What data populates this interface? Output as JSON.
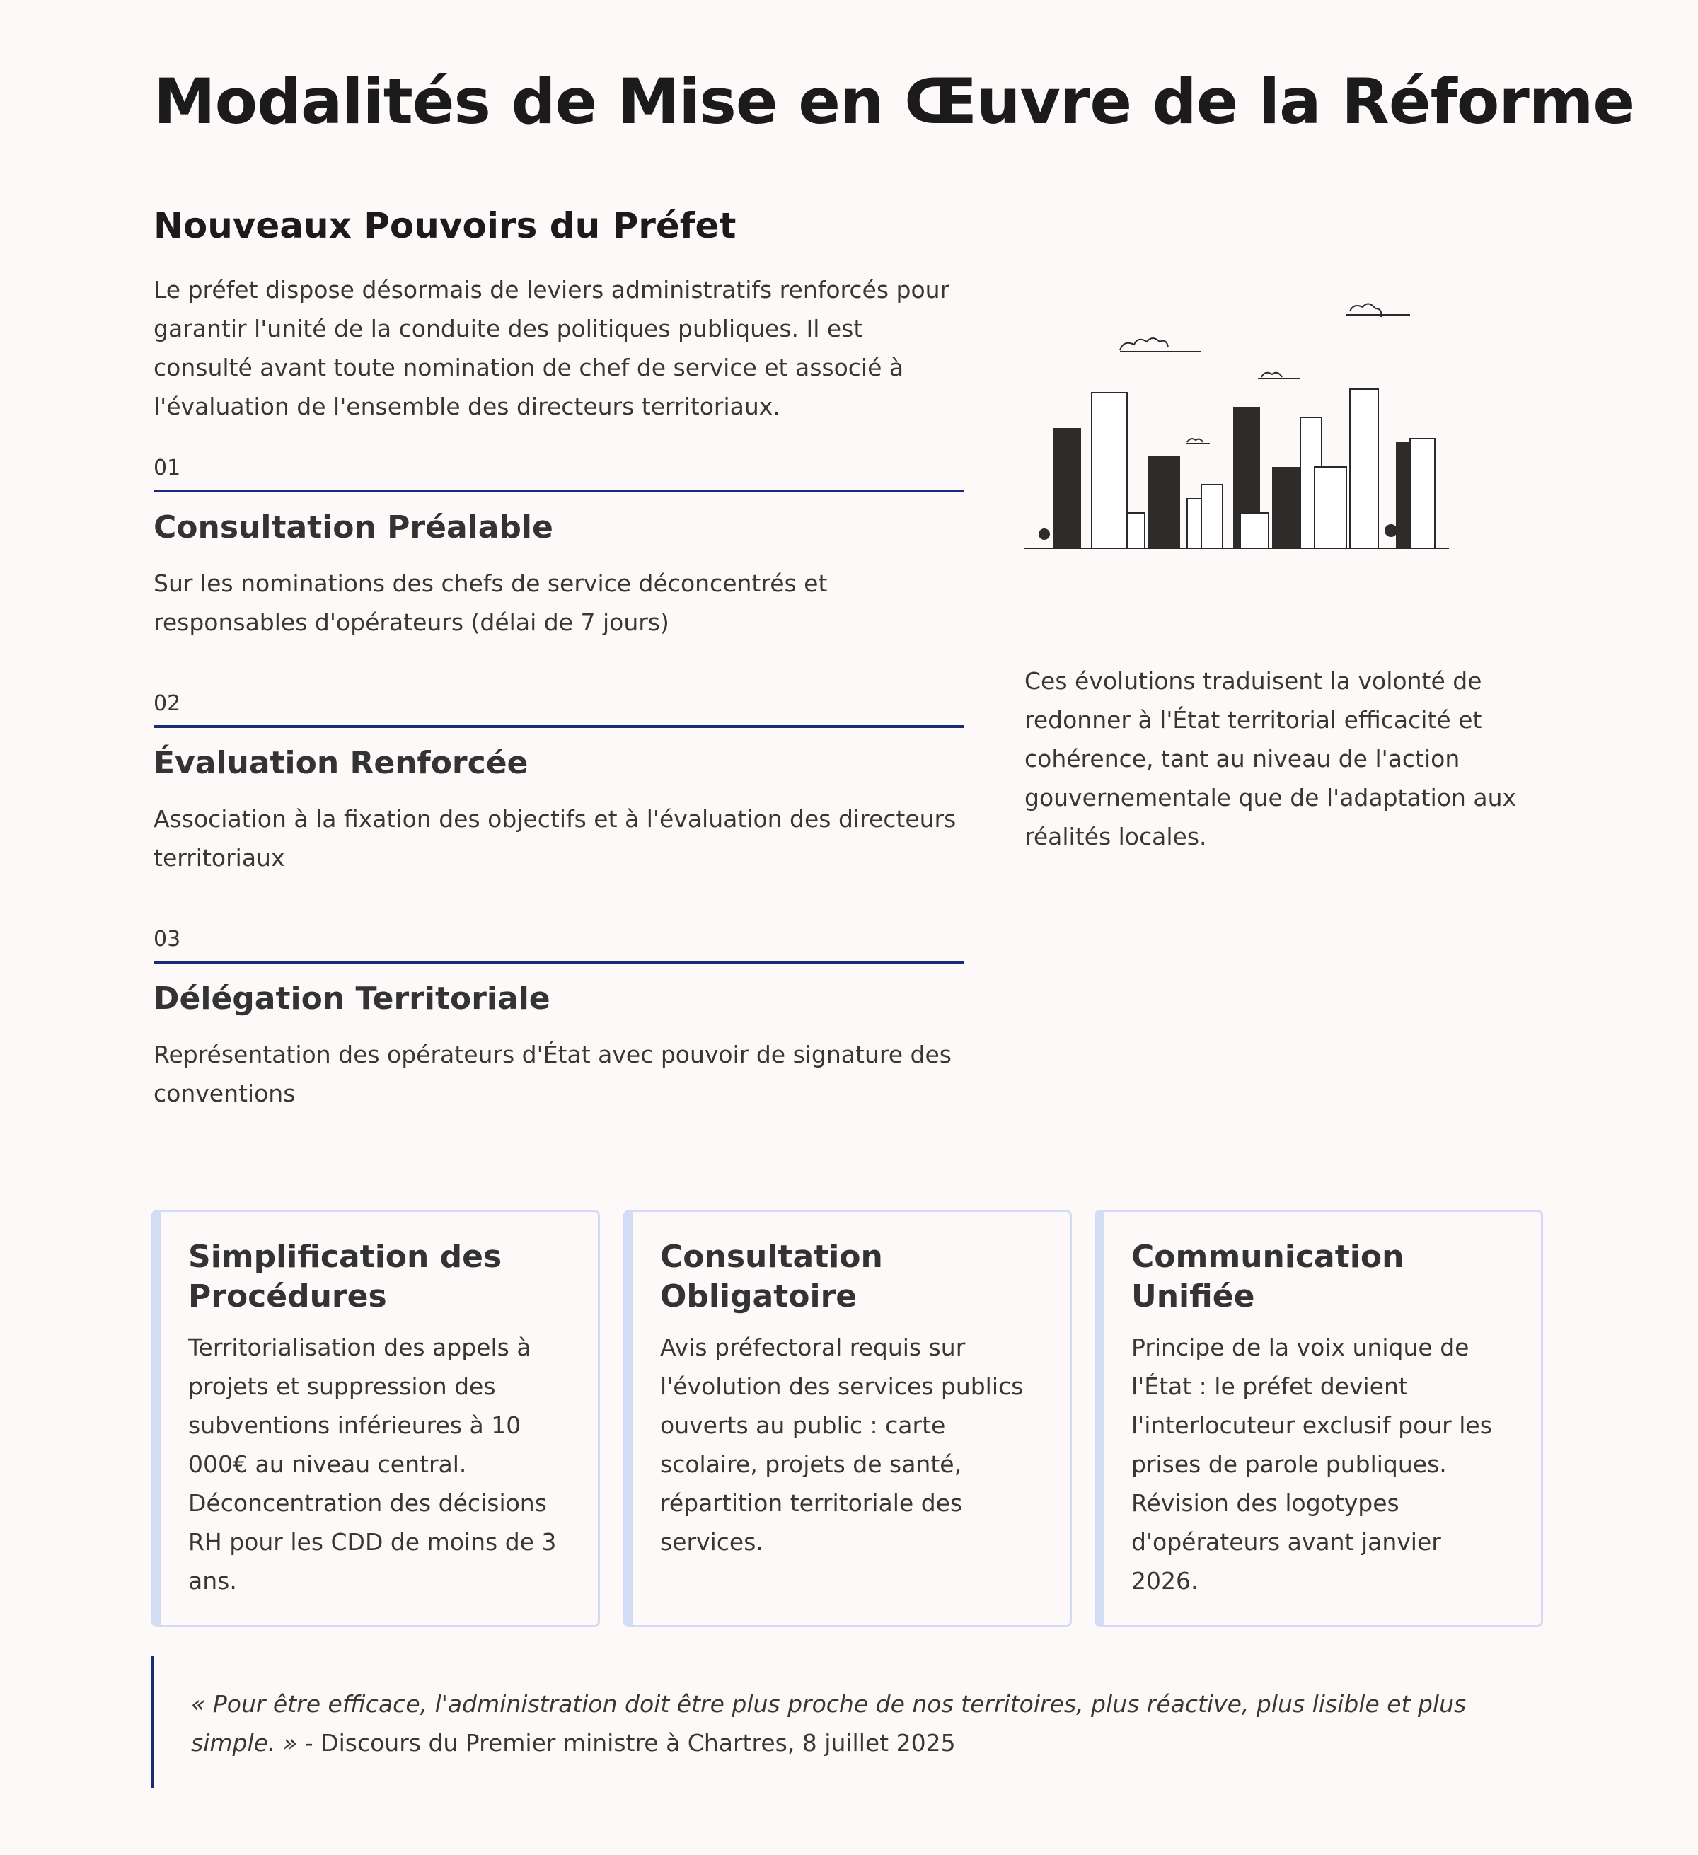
{
  "title": "Modalités de Mise en Œuvre de la Réforme",
  "section": {
    "heading": "Nouveaux Pouvoirs du Préfet",
    "intro": "Le préfet dispose désormais de leviers administratifs renforcés pour garantir l'unité de la conduite des politiques publiques. Il est consulté avant toute nomination de chef de service et associé à l'évaluation de l'ensemble des directeurs territoriaux."
  },
  "items": [
    {
      "num": "01",
      "title": "Consultation Préalable",
      "desc": "Sur les nominations des chefs de service déconcentrés et responsables d'opérateurs (délai de 7 jours)"
    },
    {
      "num": "02",
      "title": "Évaluation Renforcée",
      "desc": "Association à la fixation des objectifs et à l'évaluation des directeurs territoriaux"
    },
    {
      "num": "03",
      "title": "Délégation Territoriale",
      "desc": "Représentation des opérateurs d'État avec pouvoir de signature des conventions"
    }
  ],
  "illustration": "city-skyline-sketch",
  "right_text": "Ces évolutions traduisent la volonté de redonner à l'État territorial efficacité et cohérence, tant au niveau de l'action gouvernementale que de l'adaptation aux réalités locales.",
  "cards": [
    {
      "title": "Simplification des Procédures",
      "desc": "Territorialisation des appels à projets et suppression des subventions inférieures à 10 000€ au niveau central. Déconcentration des décisions RH pour les CDD de moins de 3 ans."
    },
    {
      "title": "Consultation Obligatoire",
      "desc": "Avis préfectoral requis sur l'évolution des services publics ouverts au public : carte scolaire, projets de santé, répartition territoriale des services."
    },
    {
      "title": "Communication Unifiée",
      "desc": "Principe de la voix unique de l'État : le préfet devient l'interlocuteur exclusif pour les prises de parole publiques. Révision des logotypes d'opérateurs avant janvier 2026."
    }
  ],
  "quote": {
    "text": "« Pour être efficace, l'administration doit être plus proche de nos territoires, plus réactive, plus lisible et plus simple. »",
    "source": " - Discours du Premier ministre à Chartres, 8 juillet 2025"
  },
  "colors": {
    "accent": "#1b2a78",
    "card_border": "#d3dcf5",
    "background": "#fdf9f8"
  }
}
